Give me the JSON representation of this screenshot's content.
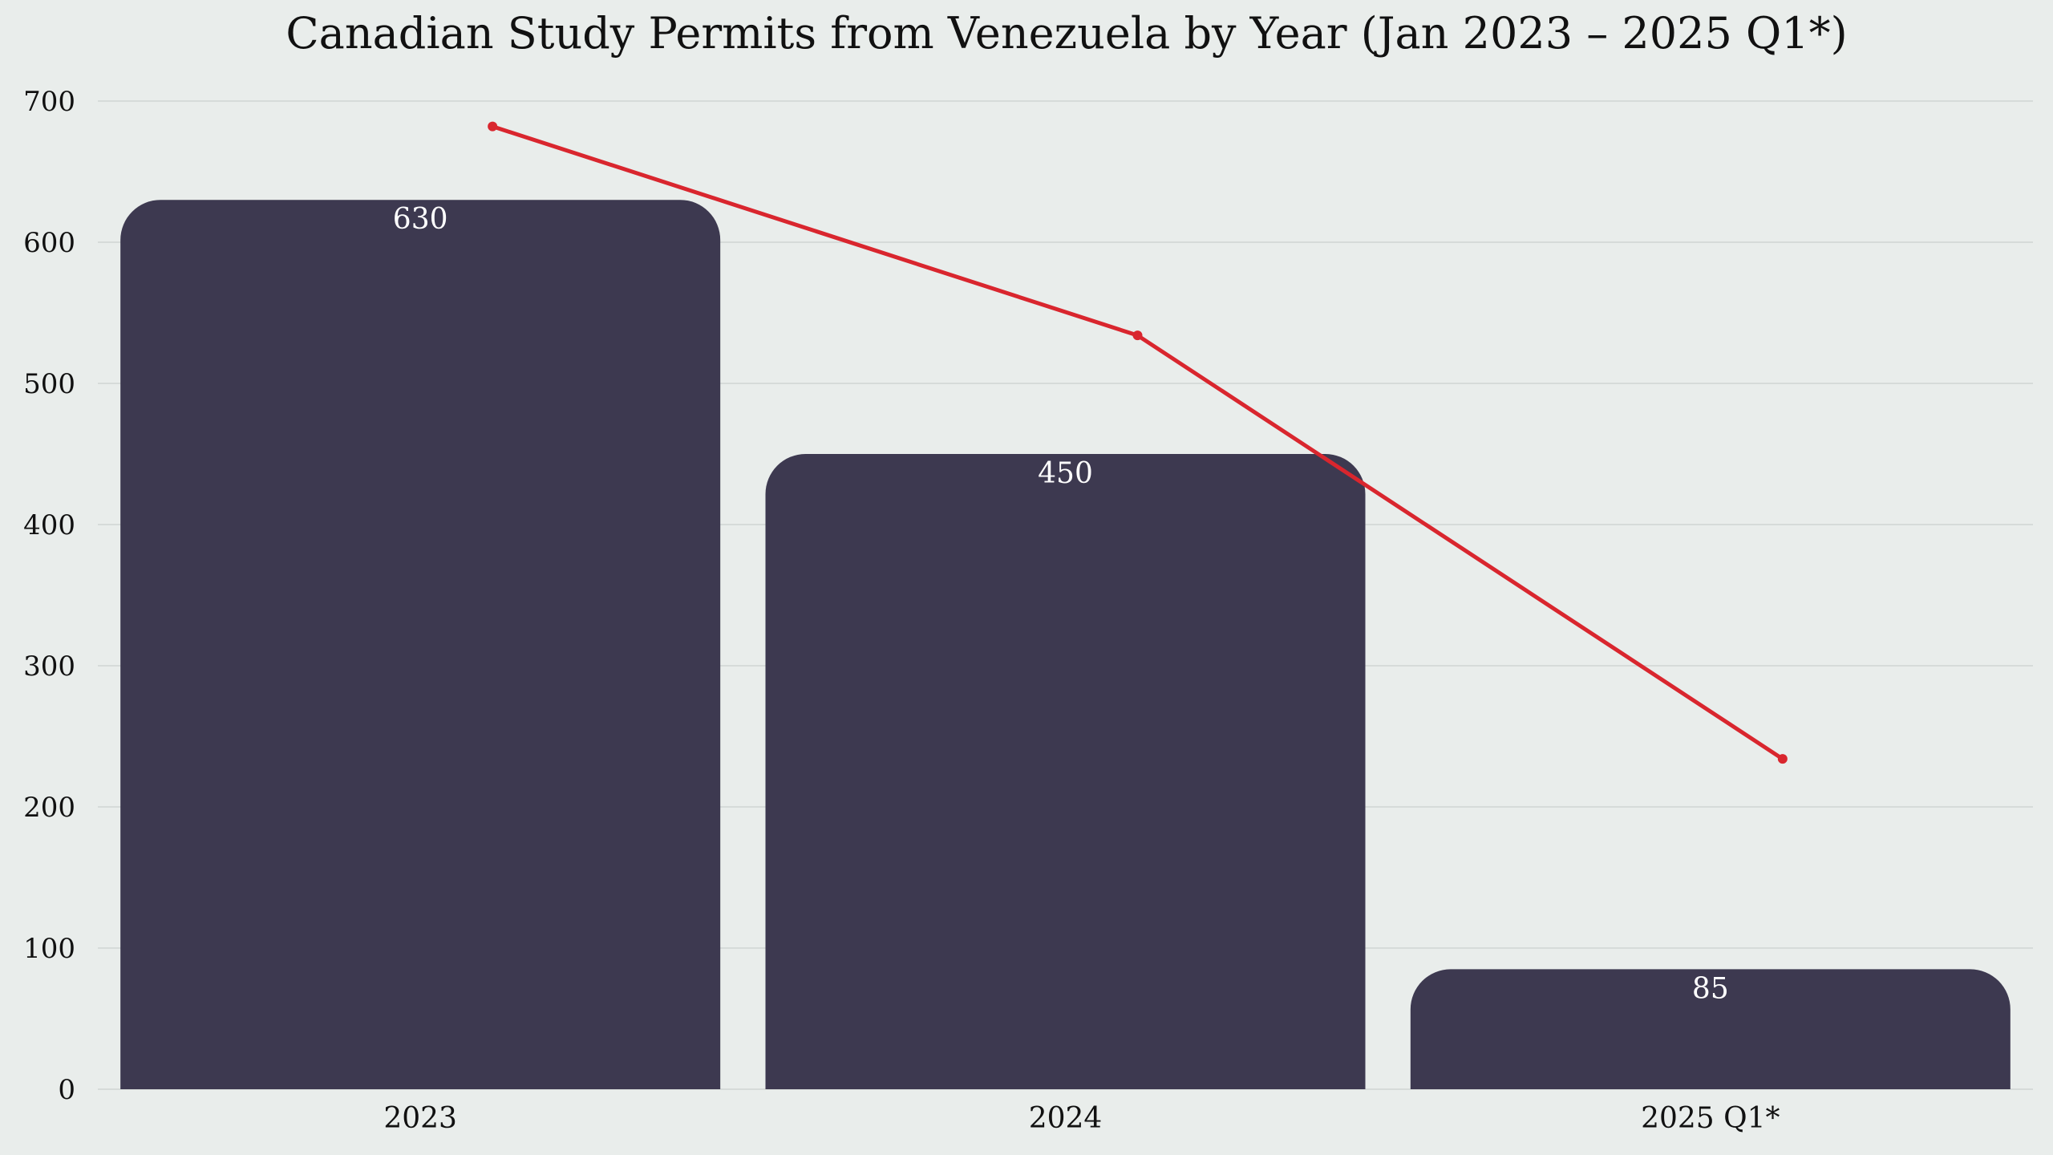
{
  "chart_data": {
    "type": "bar",
    "title": "Canadian Study Permits from Venezuela by Year (Jan 2023 – 2025 Q1*)",
    "xlabel": "",
    "ylabel": "",
    "categories": [
      "2023",
      "2024",
      "2025 Q1*"
    ],
    "values": [
      630,
      450,
      85
    ],
    "data_labels": [
      "630",
      "450",
      "85"
    ],
    "line_series": {
      "values": [
        682,
        534,
        234
      ]
    },
    "ylim": [
      0,
      700
    ],
    "yticks": [
      "0",
      "100",
      "200",
      "300",
      "400",
      "500",
      "600",
      "700"
    ],
    "grid": true,
    "legend": "none",
    "colors": {
      "bar": "#3d3950",
      "line": "#d9262e",
      "background": "#e9edeb",
      "grid": "#d6dbd9"
    }
  }
}
